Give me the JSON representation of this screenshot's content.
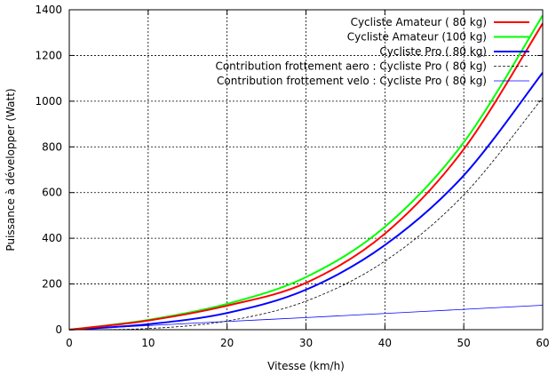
{
  "chart_data": {
    "type": "line",
    "title": "",
    "xlabel": "Vitesse (km/h)",
    "ylabel": "Puissance à développer (Watt)",
    "xlim": [
      0,
      60
    ],
    "ylim": [
      0,
      1400
    ],
    "xticks": [
      0,
      10,
      20,
      30,
      40,
      50,
      60
    ],
    "yticks": [
      0,
      200,
      400,
      600,
      800,
      1000,
      1200,
      1400
    ],
    "xtick_labels": [
      "0",
      "10",
      "20",
      "30",
      "40",
      "50",
      "60"
    ],
    "ytick_labels": [
      "0",
      "200",
      "400",
      "600",
      "800",
      "1000",
      "1200",
      "1400"
    ],
    "grid": true,
    "legend_position": "top-right",
    "series": [
      {
        "name": "Cycliste Amateur ( 80 kg)",
        "color": "#ff0000",
        "style": "solid-thick",
        "x": [
          0,
          10,
          20,
          30,
          40,
          50,
          60
        ],
        "y": [
          0,
          40,
          105,
          205,
          420,
          790,
          1340
        ]
      },
      {
        "name": "Cycliste Amateur (100 kg)",
        "color": "#00ff00",
        "style": "solid-thick",
        "x": [
          0,
          10,
          20,
          30,
          40,
          50,
          60
        ],
        "y": [
          0,
          43,
          113,
          230,
          450,
          820,
          1375
        ]
      },
      {
        "name": "Cycliste Pro ( 80 kg)",
        "color": "#0000ff",
        "style": "solid-thick",
        "x": [
          0,
          10,
          20,
          30,
          40,
          50,
          60
        ],
        "y": [
          0,
          24,
          73,
          175,
          370,
          675,
          1125
        ]
      },
      {
        "name": "Contribution frottement aero : Cycliste Pro ( 80 kg)",
        "color": "#000000",
        "style": "dashed",
        "x": [
          0,
          10,
          20,
          30,
          40,
          50,
          60
        ],
        "y": [
          0,
          5,
          38,
          125,
          300,
          590,
          1015
        ]
      },
      {
        "name": "Contribution frottement velo : Cycliste Pro ( 80 kg)",
        "color": "#0000ff",
        "style": "solid-thin",
        "x": [
          0,
          10,
          20,
          30,
          40,
          50,
          60
        ],
        "y": [
          0,
          18,
          36,
          53,
          71,
          89,
          107
        ]
      }
    ]
  }
}
